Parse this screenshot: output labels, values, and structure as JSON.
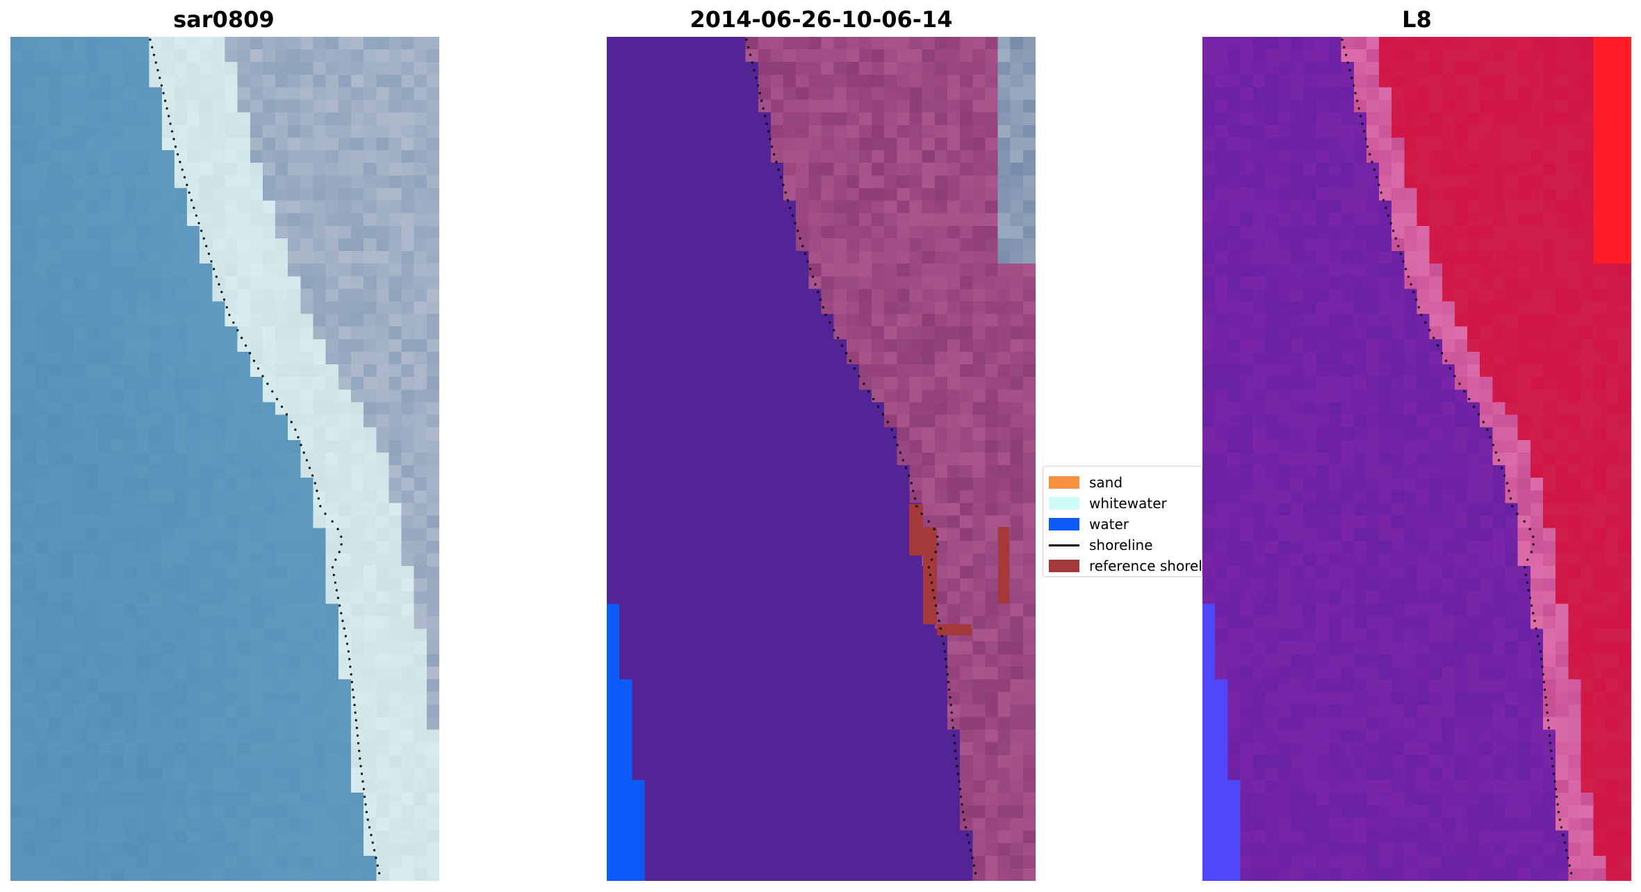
{
  "panels": [
    {
      "title": "sar0809",
      "style": "rgb"
    },
    {
      "title": "2014-06-26-10-06-14",
      "style": "classified"
    },
    {
      "title": "L8",
      "style": "index"
    }
  ],
  "legend": {
    "items": [
      {
        "label": "sand",
        "color": "#f79040",
        "kind": "patch"
      },
      {
        "label": "whitewater",
        "color": "#cffcf7",
        "kind": "patch"
      },
      {
        "label": "water",
        "color": "#0a5bf7",
        "kind": "patch"
      },
      {
        "label": "shoreline",
        "color": "#000000",
        "kind": "line"
      },
      {
        "label": "reference shoreline",
        "color": "#a3393a",
        "kind": "patch"
      }
    ]
  },
  "colors": {
    "ocean": "#5690b8",
    "beach": "#d6ecef",
    "land": "#8fa3bd",
    "classified_water_class": "#532495",
    "classified_land": "#8f3d78",
    "index_water": "#7a25a8",
    "index_land": "#d11545",
    "shoreline_dots": "#000000"
  }
}
